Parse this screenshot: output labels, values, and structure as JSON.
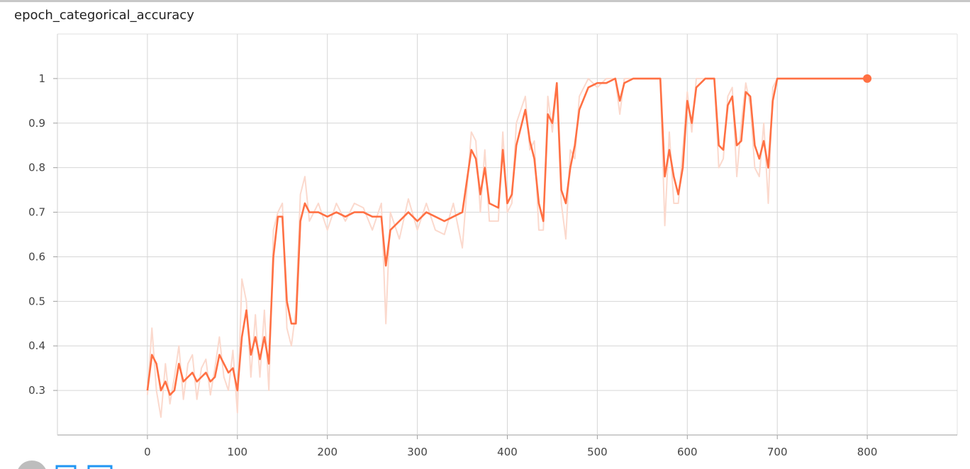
{
  "chart_data": {
    "type": "line",
    "title": "epoch_categorical_accuracy",
    "x": [
      0,
      5,
      10,
      15,
      20,
      25,
      30,
      35,
      40,
      45,
      50,
      55,
      60,
      65,
      70,
      75,
      80,
      85,
      90,
      95,
      100,
      105,
      110,
      115,
      120,
      125,
      130,
      135,
      140,
      145,
      150,
      155,
      160,
      165,
      170,
      175,
      180,
      190,
      200,
      210,
      220,
      230,
      240,
      250,
      260,
      265,
      270,
      280,
      290,
      300,
      310,
      320,
      330,
      340,
      350,
      360,
      365,
      370,
      375,
      380,
      390,
      395,
      400,
      405,
      410,
      420,
      425,
      430,
      435,
      440,
      445,
      450,
      455,
      460,
      465,
      470,
      475,
      480,
      490,
      500,
      510,
      520,
      525,
      530,
      540,
      550,
      570,
      575,
      580,
      585,
      590,
      595,
      600,
      605,
      610,
      620,
      630,
      635,
      640,
      645,
      650,
      655,
      660,
      665,
      670,
      675,
      680,
      685,
      690,
      695,
      700,
      720,
      800
    ],
    "series": [
      {
        "color": "#fbd9cd",
        "values": [
          0.29,
          0.44,
          0.3,
          0.24,
          0.36,
          0.27,
          0.33,
          0.4,
          0.28,
          0.36,
          0.38,
          0.28,
          0.35,
          0.37,
          0.29,
          0.35,
          0.42,
          0.33,
          0.3,
          0.39,
          0.25,
          0.55,
          0.5,
          0.33,
          0.47,
          0.33,
          0.48,
          0.3,
          0.66,
          0.7,
          0.72,
          0.44,
          0.4,
          0.48,
          0.74,
          0.78,
          0.68,
          0.72,
          0.66,
          0.72,
          0.68,
          0.72,
          0.71,
          0.66,
          0.72,
          0.45,
          0.7,
          0.64,
          0.73,
          0.66,
          0.72,
          0.66,
          0.65,
          0.72,
          0.62,
          0.88,
          0.86,
          0.7,
          0.84,
          0.68,
          0.68,
          0.88,
          0.7,
          0.72,
          0.9,
          0.96,
          0.84,
          0.86,
          0.66,
          0.66,
          0.96,
          0.88,
          0.98,
          0.72,
          0.64,
          0.84,
          0.82,
          0.96,
          1,
          0.98,
          1,
          1,
          0.92,
          1,
          1,
          1,
          1,
          0.67,
          0.88,
          0.72,
          0.72,
          0.84,
          0.97,
          0.88,
          1,
          1,
          1,
          0.8,
          0.82,
          0.96,
          0.98,
          0.78,
          0.9,
          0.99,
          0.94,
          0.8,
          0.78,
          0.9,
          0.72,
          0.98,
          1,
          1,
          1
        ]
      },
      {
        "color": "#ff7043",
        "values": [
          0.3,
          0.38,
          0.36,
          0.3,
          0.32,
          0.29,
          0.3,
          0.36,
          0.32,
          0.33,
          0.34,
          0.32,
          0.33,
          0.34,
          0.32,
          0.33,
          0.38,
          0.36,
          0.34,
          0.35,
          0.3,
          0.42,
          0.48,
          0.38,
          0.42,
          0.37,
          0.42,
          0.36,
          0.6,
          0.69,
          0.69,
          0.5,
          0.45,
          0.45,
          0.68,
          0.72,
          0.7,
          0.7,
          0.69,
          0.7,
          0.69,
          0.7,
          0.7,
          0.69,
          0.69,
          0.58,
          0.66,
          0.68,
          0.7,
          0.68,
          0.7,
          0.69,
          0.68,
          0.69,
          0.7,
          0.84,
          0.82,
          0.74,
          0.8,
          0.72,
          0.71,
          0.84,
          0.72,
          0.74,
          0.85,
          0.93,
          0.86,
          0.82,
          0.72,
          0.68,
          0.92,
          0.9,
          0.99,
          0.75,
          0.72,
          0.8,
          0.85,
          0.93,
          0.98,
          0.99,
          0.99,
          1,
          0.95,
          0.99,
          1,
          1,
          1,
          0.78,
          0.84,
          0.78,
          0.74,
          0.8,
          0.95,
          0.9,
          0.98,
          1,
          1,
          0.85,
          0.84,
          0.94,
          0.96,
          0.85,
          0.86,
          0.97,
          0.96,
          0.85,
          0.82,
          0.86,
          0.8,
          0.95,
          1,
          1,
          1
        ]
      }
    ],
    "xlim": [
      -100,
      900
    ],
    "xticks": [
      0,
      100,
      200,
      300,
      400,
      500,
      600,
      700,
      800
    ],
    "ylim": [
      0.2,
      1.1
    ],
    "yticks": [
      0.3,
      0.4,
      0.5,
      0.6,
      0.7,
      0.8,
      0.9,
      1
    ],
    "grid": true
  }
}
